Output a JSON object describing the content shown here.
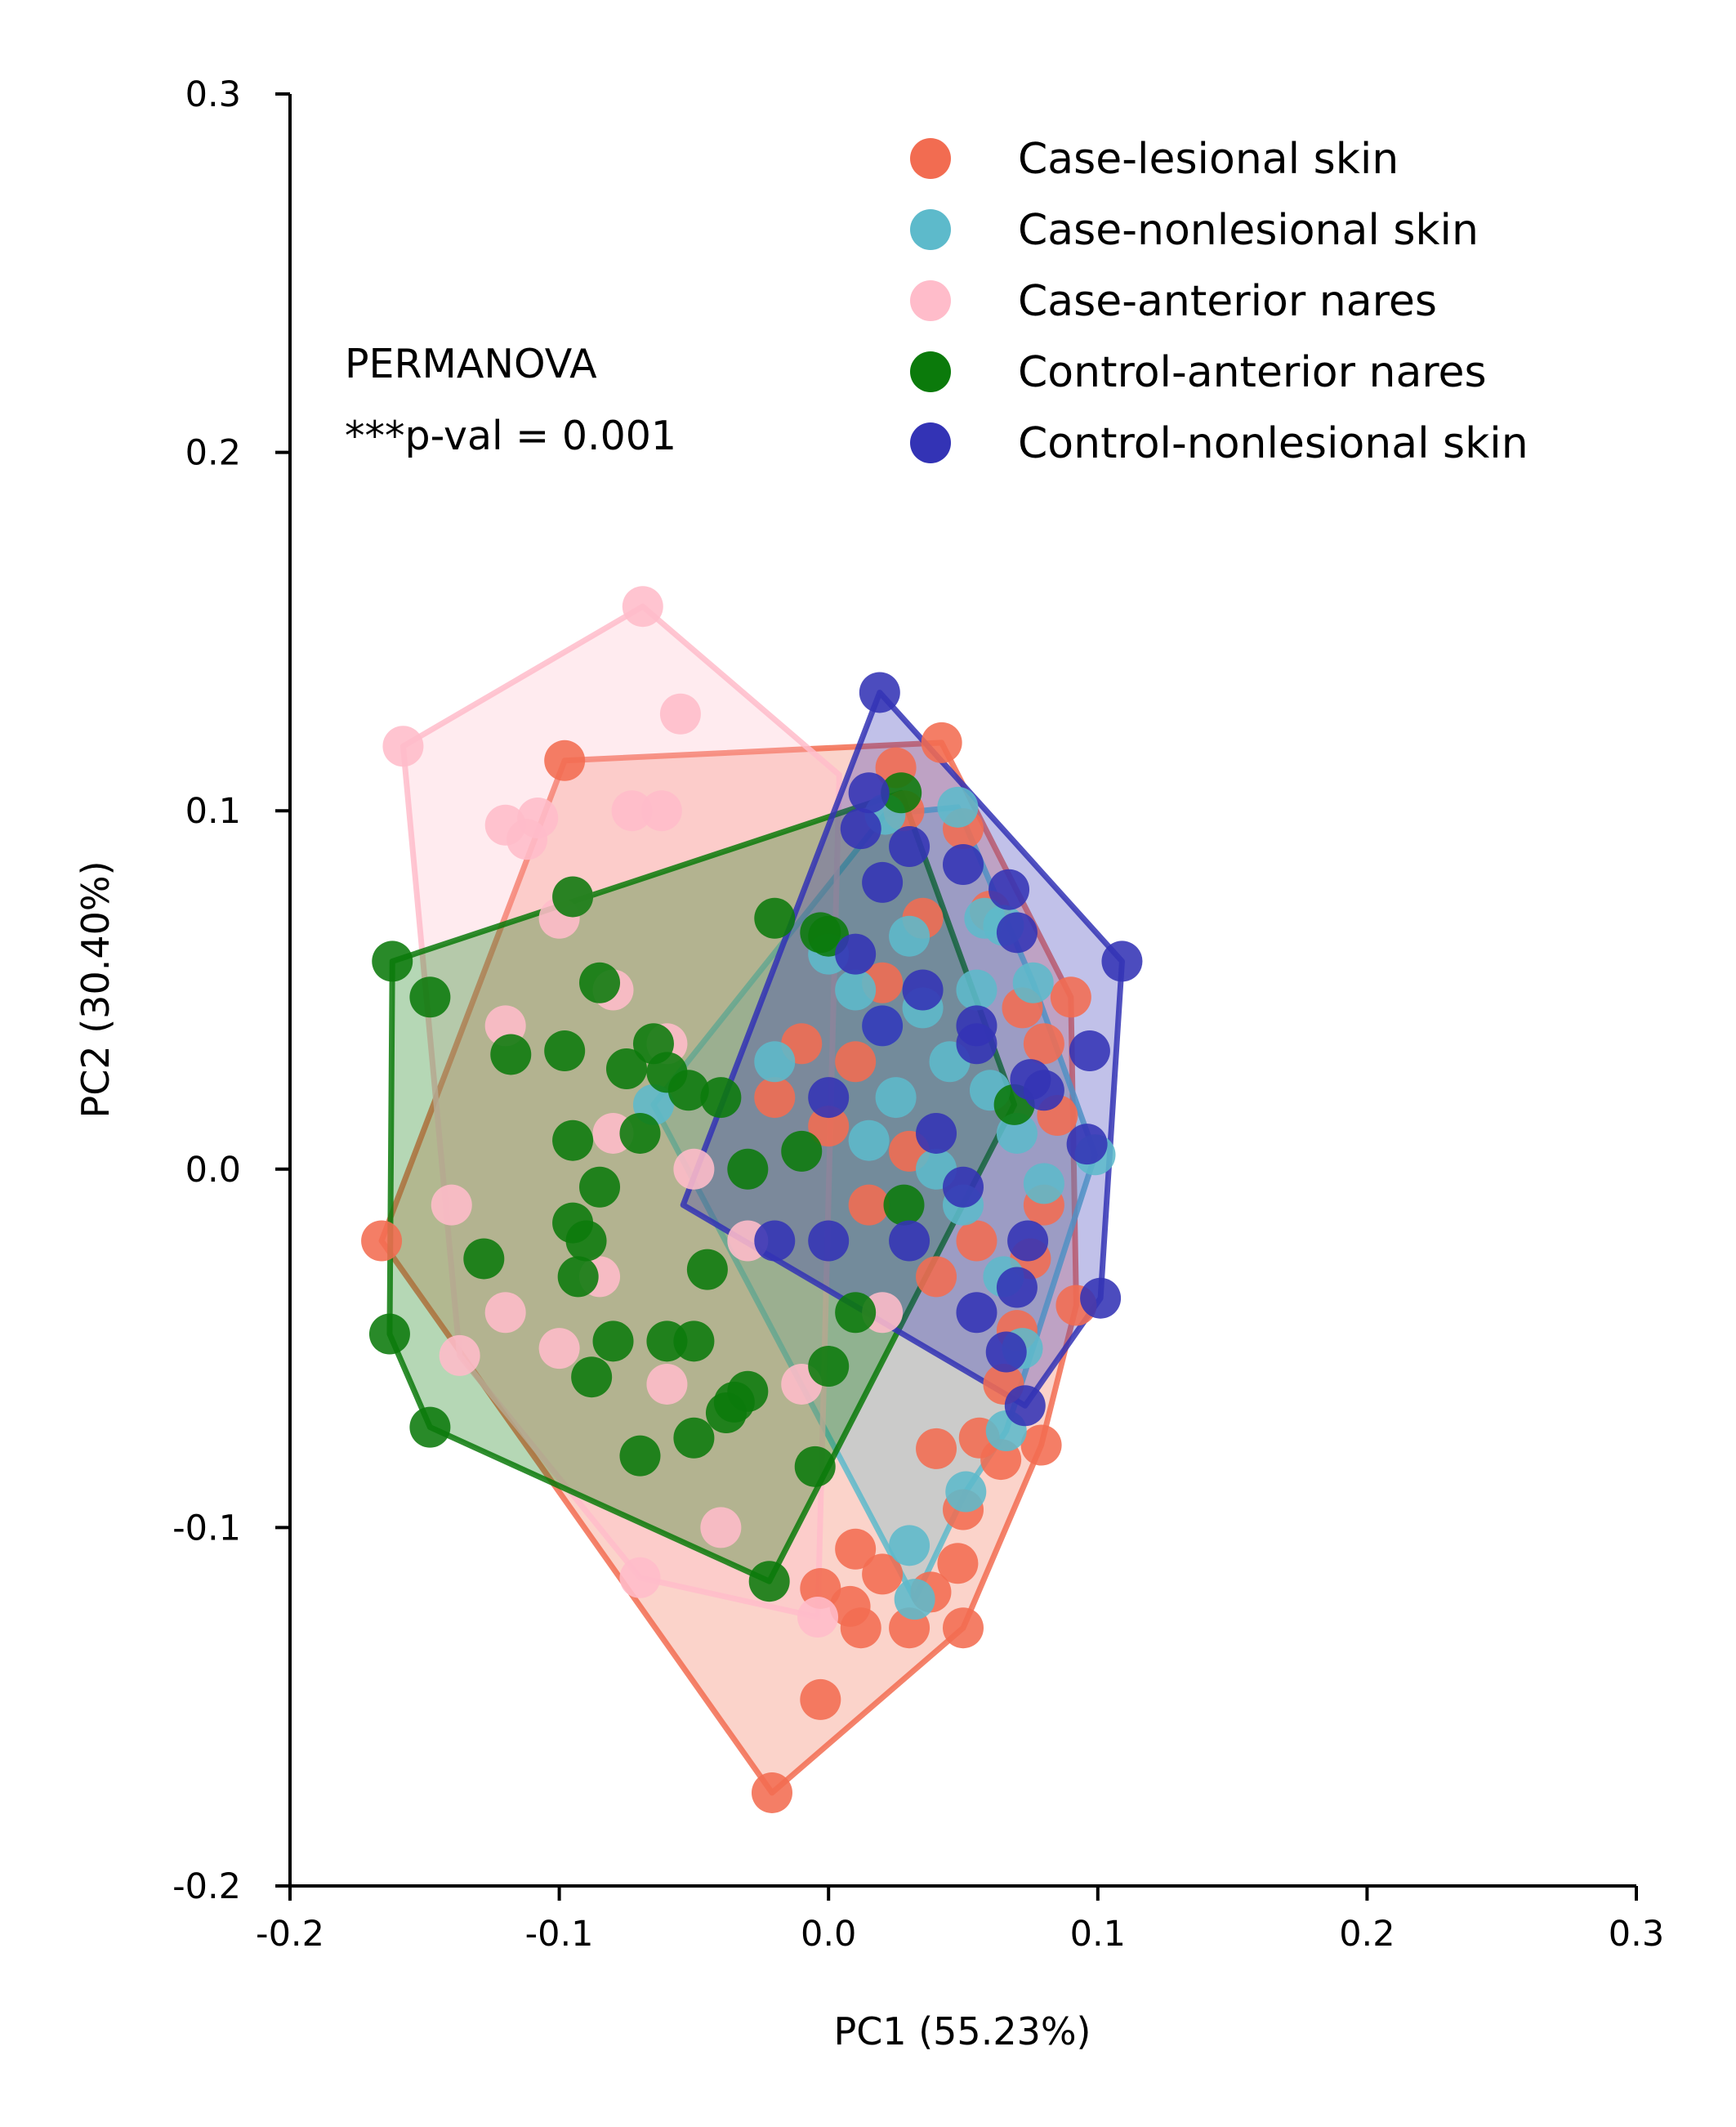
{
  "chart_data": {
    "type": "scatter",
    "xlabel": "PC1 (55.23%)",
    "ylabel": "PC2 (30.40%)",
    "xlim": [
      -0.2,
      0.3
    ],
    "ylim": [
      -0.2,
      0.3
    ],
    "xticks": [
      -0.2,
      -0.1,
      0.0,
      0.1,
      0.2,
      0.3
    ],
    "yticks": [
      -0.2,
      -0.1,
      0.0,
      0.1,
      0.2,
      0.3
    ],
    "xtick_labels": [
      "-0.2",
      "-0.1",
      "0.0",
      "0.1",
      "0.2",
      "0.3"
    ],
    "ytick_labels": [
      "-0.2",
      "-0.1",
      "0.0",
      "0.1",
      "0.2",
      "0.3"
    ],
    "grid": false,
    "legend_position": "top-right",
    "annotation": {
      "line1": "PERMANOVA",
      "line2": "***p-val = 0.001"
    },
    "series": [
      {
        "name": "Case-lesional skin",
        "color": "#F26C51",
        "hull": [
          [
            -0.021,
            -0.174
          ],
          [
            0.05,
            -0.128
          ],
          [
            0.079,
            -0.077
          ],
          [
            0.092,
            -0.038
          ],
          [
            0.09,
            0.048
          ],
          [
            0.042,
            0.119
          ],
          [
            -0.098,
            0.114
          ],
          [
            -0.166,
            -0.02
          ]
        ],
        "points": [
          [
            -0.166,
            -0.02
          ],
          [
            -0.098,
            0.114
          ],
          [
            0.042,
            0.119
          ],
          [
            0.09,
            0.048
          ],
          [
            0.092,
            -0.038
          ],
          [
            0.079,
            -0.077
          ],
          [
            0.05,
            -0.128
          ],
          [
            -0.021,
            -0.174
          ],
          [
            -0.003,
            -0.148
          ],
          [
            0.008,
            -0.122
          ],
          [
            0.012,
            -0.128
          ],
          [
            0.03,
            -0.128
          ],
          [
            0.038,
            -0.118
          ],
          [
            0.048,
            -0.11
          ],
          [
            0.01,
            -0.106
          ],
          [
            -0.003,
            -0.117
          ],
          [
            0.02,
            -0.113
          ],
          [
            0.05,
            -0.095
          ],
          [
            0.064,
            -0.081
          ],
          [
            0.056,
            -0.075
          ],
          [
            0.04,
            -0.078
          ],
          [
            0.065,
            -0.06
          ],
          [
            0.07,
            -0.045
          ],
          [
            0.075,
            -0.025
          ],
          [
            0.08,
            -0.01
          ],
          [
            0.085,
            0.015
          ],
          [
            0.08,
            0.035
          ],
          [
            0.072,
            0.045
          ],
          [
            0.06,
            0.072
          ],
          [
            0.05,
            0.095
          ],
          [
            0.028,
            0.1
          ],
          [
            0.025,
            0.112
          ],
          [
            0.035,
            0.07
          ],
          [
            0.02,
            0.052
          ],
          [
            0.01,
            0.03
          ],
          [
            0.0,
            0.012
          ],
          [
            -0.01,
            0.035
          ],
          [
            -0.02,
            0.02
          ],
          [
            0.015,
            -0.01
          ],
          [
            0.04,
            -0.03
          ],
          [
            0.055,
            -0.02
          ],
          [
            0.03,
            0.005
          ]
        ]
      },
      {
        "name": "Case-nonlesional skin",
        "color": "#5DBACB",
        "hull": [
          [
            0.032,
            -0.12
          ],
          [
            0.051,
            -0.09
          ],
          [
            0.066,
            -0.073
          ],
          [
            0.099,
            0.004
          ],
          [
            0.076,
            0.052
          ],
          [
            0.048,
            0.101
          ],
          [
            0.021,
            0.099
          ],
          [
            -0.065,
            0.018
          ]
        ],
        "points": [
          [
            0.032,
            -0.12
          ],
          [
            0.03,
            -0.105
          ],
          [
            0.051,
            -0.09
          ],
          [
            0.066,
            -0.073
          ],
          [
            0.099,
            0.004
          ],
          [
            0.076,
            0.052
          ],
          [
            0.048,
            0.101
          ],
          [
            0.021,
            0.099
          ],
          [
            -0.065,
            0.018
          ],
          [
            0.058,
            0.07
          ],
          [
            0.065,
            0.068
          ],
          [
            0.03,
            0.065
          ],
          [
            0.02,
            0.04
          ],
          [
            0.045,
            0.03
          ],
          [
            0.06,
            0.022
          ],
          [
            0.07,
            0.01
          ],
          [
            0.08,
            -0.004
          ],
          [
            0.065,
            -0.03
          ],
          [
            0.05,
            -0.01
          ],
          [
            0.025,
            0.02
          ],
          [
            0.01,
            0.05
          ],
          [
            0.0,
            0.06
          ],
          [
            -0.02,
            0.03
          ],
          [
            0.035,
            0.045
          ],
          [
            0.055,
            0.05
          ],
          [
            0.072,
            -0.05
          ],
          [
            0.04,
            0.0
          ],
          [
            0.015,
            0.008
          ]
        ]
      },
      {
        "name": "Case-anterior nares",
        "color": "#FFBCCA",
        "hull": [
          [
            -0.004,
            -0.125
          ],
          [
            -0.07,
            -0.114
          ],
          [
            -0.137,
            -0.052
          ],
          [
            -0.158,
            0.118
          ],
          [
            -0.069,
            0.157
          ],
          [
            0.004,
            0.11
          ]
        ],
        "points": [
          [
            -0.158,
            0.118
          ],
          [
            -0.069,
            0.157
          ],
          [
            -0.055,
            0.127
          ],
          [
            -0.12,
            0.096
          ],
          [
            -0.108,
            0.098
          ],
          [
            -0.112,
            0.092
          ],
          [
            -0.073,
            0.1
          ],
          [
            -0.062,
            0.1
          ],
          [
            -0.07,
            -0.114
          ],
          [
            -0.004,
            -0.125
          ],
          [
            -0.137,
            -0.052
          ],
          [
            -0.1,
            0.07
          ],
          [
            -0.095,
            0.076
          ],
          [
            -0.08,
            0.05
          ],
          [
            -0.06,
            0.035
          ],
          [
            -0.12,
            0.04
          ],
          [
            -0.14,
            -0.01
          ],
          [
            -0.12,
            -0.04
          ],
          [
            -0.1,
            -0.05
          ],
          [
            -0.085,
            -0.03
          ],
          [
            -0.06,
            -0.06
          ],
          [
            -0.04,
            -0.1
          ],
          [
            -0.01,
            -0.06
          ],
          [
            0.02,
            -0.04
          ],
          [
            -0.08,
            0.01
          ],
          [
            -0.05,
            0.0
          ],
          [
            -0.03,
            -0.02
          ]
        ]
      },
      {
        "name": "Control-anterior nares",
        "color": "#0B7A0B",
        "hull": [
          [
            -0.148,
            -0.072
          ],
          [
            -0.022,
            -0.115
          ],
          [
            0.069,
            0.018
          ],
          [
            0.027,
            0.105
          ],
          [
            -0.162,
            0.058
          ],
          [
            -0.163,
            -0.046
          ]
        ],
        "points": [
          [
            -0.162,
            0.058
          ],
          [
            -0.163,
            -0.046
          ],
          [
            -0.148,
            -0.072
          ],
          [
            -0.022,
            -0.115
          ],
          [
            0.027,
            0.105
          ],
          [
            0.069,
            0.018
          ],
          [
            -0.148,
            0.048
          ],
          [
            -0.095,
            0.076
          ],
          [
            -0.085,
            0.052
          ],
          [
            -0.118,
            0.032
          ],
          [
            -0.098,
            0.033
          ],
          [
            -0.095,
            0.008
          ],
          [
            -0.075,
            0.028
          ],
          [
            -0.065,
            0.035
          ],
          [
            -0.06,
            0.027
          ],
          [
            -0.07,
            0.01
          ],
          [
            -0.128,
            -0.025
          ],
          [
            -0.095,
            -0.015
          ],
          [
            -0.09,
            -0.02
          ],
          [
            -0.093,
            -0.03
          ],
          [
            -0.085,
            -0.005
          ],
          [
            -0.08,
            -0.048
          ],
          [
            -0.088,
            -0.058
          ],
          [
            -0.06,
            -0.048
          ],
          [
            -0.05,
            -0.048
          ],
          [
            -0.045,
            -0.028
          ],
          [
            -0.038,
            -0.068
          ],
          [
            -0.035,
            -0.065
          ],
          [
            -0.03,
            -0.062
          ],
          [
            -0.05,
            -0.075
          ],
          [
            -0.07,
            -0.08
          ],
          [
            -0.005,
            -0.083
          ],
          [
            -0.02,
            0.07
          ],
          [
            -0.003,
            0.066
          ],
          [
            0.0,
            0.065
          ],
          [
            -0.03,
            0.0
          ],
          [
            -0.01,
            0.005
          ],
          [
            0.028,
            -0.01
          ],
          [
            0.01,
            -0.04
          ],
          [
            0.0,
            -0.055
          ],
          [
            -0.052,
            0.022
          ],
          [
            -0.04,
            0.02
          ]
        ]
      },
      {
        "name": "Control-nonlesional skin",
        "color": "#3333B5",
        "hull": [
          [
            0.073,
            -0.066
          ],
          [
            0.101,
            -0.036
          ],
          [
            0.109,
            0.058
          ],
          [
            0.019,
            0.133
          ],
          [
            -0.054,
            -0.01
          ]
        ],
        "points": [
          [
            0.019,
            0.133
          ],
          [
            0.109,
            0.058
          ],
          [
            0.097,
            0.033
          ],
          [
            0.096,
            0.007
          ],
          [
            0.101,
            -0.036
          ],
          [
            0.073,
            -0.066
          ],
          [
            0.066,
            -0.051
          ],
          [
            0.07,
            -0.033
          ],
          [
            0.074,
            -0.02
          ],
          [
            0.055,
            -0.04
          ],
          [
            0.055,
            0.035
          ],
          [
            0.075,
            0.025
          ],
          [
            0.08,
            0.022
          ],
          [
            0.07,
            0.066
          ],
          [
            0.067,
            0.078
          ],
          [
            0.05,
            0.085
          ],
          [
            0.03,
            0.09
          ],
          [
            0.015,
            0.105
          ],
          [
            0.012,
            0.095
          ],
          [
            0.02,
            0.08
          ],
          [
            0.035,
            0.05
          ],
          [
            0.055,
            0.04
          ],
          [
            0.04,
            0.01
          ],
          [
            0.02,
            0.04
          ],
          [
            0.01,
            0.06
          ],
          [
            0.0,
            0.02
          ],
          [
            -0.02,
            -0.02
          ],
          [
            0.0,
            -0.02
          ],
          [
            0.03,
            -0.02
          ],
          [
            0.05,
            -0.005
          ]
        ]
      }
    ]
  }
}
